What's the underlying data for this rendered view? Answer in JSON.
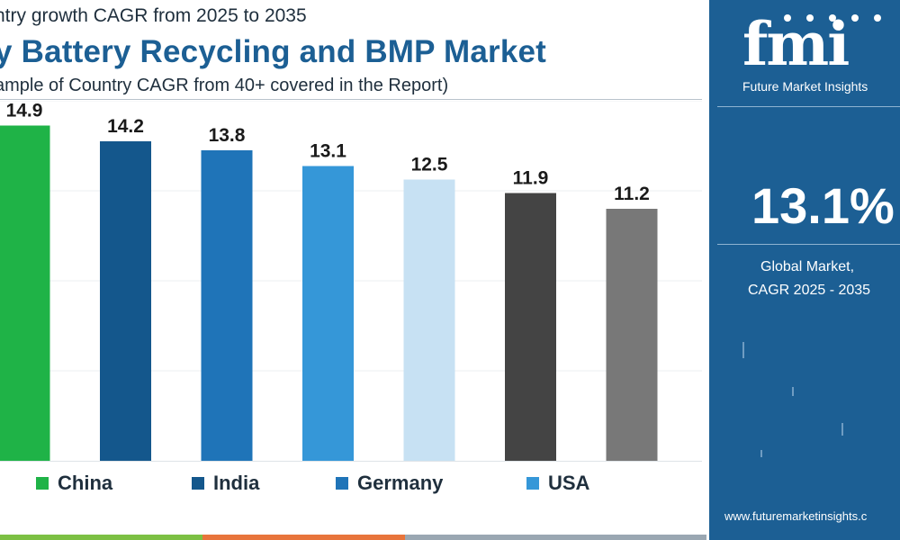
{
  "header": {
    "subtitle": "ntry growth CAGR from 2025 to 2035",
    "title": "y Battery Recycling and BMP Market",
    "note": "ample of Country CAGR from 40+ covered in the Report)"
  },
  "chart_data": {
    "type": "bar",
    "categories": [
      "China",
      "India",
      "Germany",
      "USA",
      "",
      "",
      ""
    ],
    "values": [
      14.9,
      14.2,
      13.8,
      13.1,
      12.5,
      11.9,
      11.2
    ],
    "data_labels": [
      "14.9",
      "14.2",
      "13.8",
      "13.1",
      "12.5",
      "11.9",
      "11.2"
    ],
    "colors": [
      "#1fb347",
      "#14578c",
      "#1f74b8",
      "#3597d8",
      "#c7e1f3",
      "#444444",
      "#787878"
    ],
    "ylim": [
      0,
      16
    ],
    "grid": true,
    "legend_position": "bottom",
    "legend": [
      {
        "label": "China",
        "color": "#1fb347"
      },
      {
        "label": "India",
        "color": "#14578c"
      },
      {
        "label": "Germany",
        "color": "#1f74b8"
      },
      {
        "label": "USA",
        "color": "#3597d8"
      }
    ]
  },
  "sidebar": {
    "logo_text": "fmi",
    "logo_subtitle": "Future Market Insights",
    "kpi_value": "13.1%",
    "kpi_label_1": "Global Market,",
    "kpi_label_2": "CAGR 2025 - 2035",
    "website": "www.futuremarketinsights.c",
    "bg_color": "#1c5f94"
  }
}
